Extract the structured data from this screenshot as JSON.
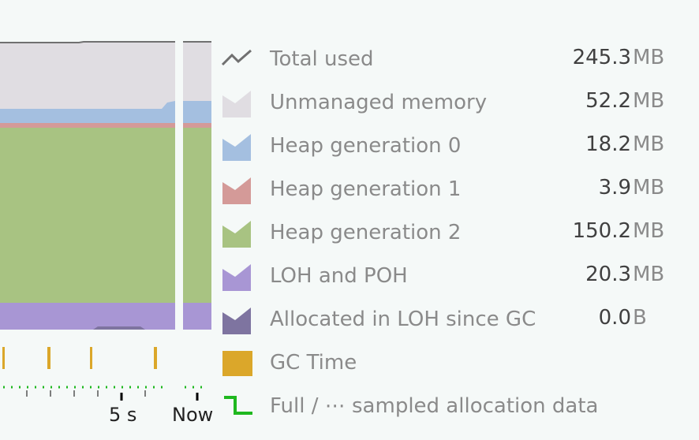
{
  "legend": [
    {
      "id": "total-used",
      "label": "Total used",
      "value": "245.3",
      "unit": "MB",
      "color": "#707070",
      "icon": "line-icon"
    },
    {
      "id": "unmanaged-memory",
      "label": "Unmanaged memory",
      "value": "52.2",
      "unit": "MB",
      "color": "#e0dde2",
      "icon": "area-icon"
    },
    {
      "id": "heap-gen-0",
      "label": "Heap generation 0",
      "value": "18.2",
      "unit": "MB",
      "color": "#a4bfe0",
      "icon": "area-icon"
    },
    {
      "id": "heap-gen-1",
      "label": "Heap generation 1",
      "value": "3.9",
      "unit": "MB",
      "color": "#d49a98",
      "icon": "area-icon"
    },
    {
      "id": "heap-gen-2",
      "label": "Heap generation 2",
      "value": "150.2",
      "unit": "MB",
      "color": "#a8c382",
      "icon": "area-icon"
    },
    {
      "id": "loh-poh",
      "label": "LOH and POH",
      "value": "20.3",
      "unit": "MB",
      "color": "#a896d4",
      "icon": "area-icon"
    },
    {
      "id": "allocated-loh",
      "label": "Allocated in LOH since GC",
      "value": "0.0",
      "unit": "B",
      "color": "#7e74a0",
      "icon": "area-icon"
    },
    {
      "id": "gc-time",
      "label": "GC Time",
      "value": "",
      "unit": "",
      "color": "#dba72a",
      "icon": "bar-icon"
    },
    {
      "id": "allocation-data",
      "label": "Full / ⋯ sampled allocation data",
      "value": "",
      "unit": "",
      "color": "#1fb81f",
      "icon": "step-icon"
    }
  ],
  "timeline": {
    "tick_5s": "5 s",
    "tick_now": "Now"
  }
}
